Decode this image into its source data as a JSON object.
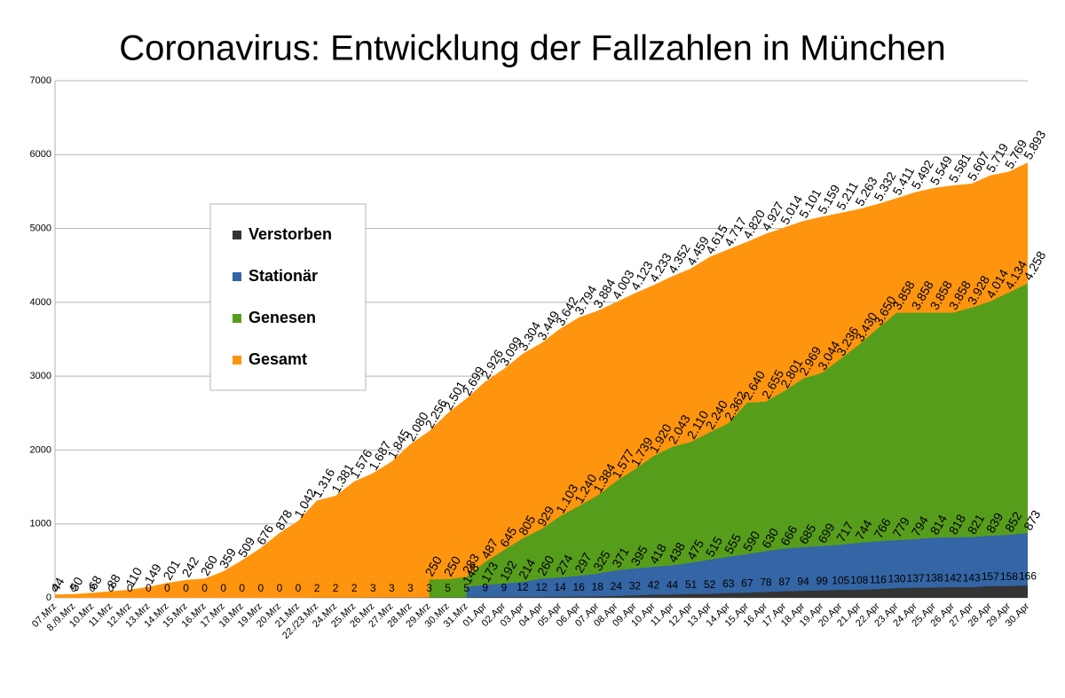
{
  "chart_data": {
    "type": "area",
    "title": "Coronavirus: Entwicklung der Fallzahlen in München",
    "categories": [
      "07.Mrz",
      "8./9.Mrz",
      "10.Mrz",
      "11.Mrz",
      "12.Mrz",
      "13.Mrz",
      "14.Mrz",
      "15.Mrz",
      "16.Mrz",
      "17.Mrz",
      "18.Mrz",
      "19.Mrz",
      "20.Mrz",
      "21.Mrz",
      "22./23.Mrz",
      "24.Mrz",
      "25.Mrz",
      "26.Mrz",
      "27.Mrz",
      "28.Mrz",
      "29.Mrz",
      "30.Mrz",
      "31.Mrz",
      "01.Apr",
      "02.Apr",
      "03.Apr",
      "04.Apr",
      "05.Apr",
      "06.Apr",
      "07.Apr",
      "08.Apr",
      "09.Apr",
      "10.Apr",
      "11.Apr",
      "12.Apr",
      "13.Apr",
      "14.Apr",
      "15.Apr",
      "16.Apr",
      "17.Apr",
      "18.Apr",
      "19.Apr",
      "20.Apr",
      "21.Apr",
      "22.Apr",
      "23.Apr",
      "24.Apr",
      "25.Apr",
      "26.Apr",
      "27.Apr",
      "28.Apr",
      "29.Apr",
      "30.Apr"
    ],
    "series": [
      {
        "name": "Verstorben",
        "color": "#333333",
        "values": [
          0,
          0,
          0,
          0,
          0,
          0,
          0,
          0,
          0,
          0,
          0,
          0,
          0,
          0,
          2,
          2,
          2,
          3,
          3,
          3,
          3,
          5,
          5,
          9,
          9,
          12,
          12,
          14,
          16,
          18,
          24,
          32,
          42,
          44,
          51,
          52,
          63,
          67,
          78,
          87,
          94,
          99,
          105,
          108,
          116,
          130,
          137,
          138,
          142,
          143,
          157,
          158,
          166
        ]
      },
      {
        "name": "Stationär",
        "color": "#3465a4",
        "values": [
          null,
          null,
          null,
          null,
          null,
          null,
          null,
          null,
          null,
          null,
          null,
          null,
          null,
          null,
          null,
          null,
          null,
          null,
          null,
          null,
          null,
          null,
          148,
          173,
          192,
          214,
          260,
          274,
          297,
          325,
          371,
          395,
          418,
          438,
          475,
          515,
          555,
          590,
          630,
          666,
          685,
          699,
          717,
          744,
          766,
          779,
          794,
          814,
          818,
          821,
          839,
          852,
          873
        ]
      },
      {
        "name": "Genesen",
        "color": "#579d1c",
        "values": [
          null,
          null,
          null,
          null,
          null,
          null,
          null,
          null,
          null,
          null,
          null,
          null,
          null,
          null,
          null,
          null,
          null,
          null,
          null,
          null,
          250,
          250,
          283,
          487,
          645,
          805,
          929,
          1103,
          1240,
          1384,
          1577,
          1739,
          1920,
          2043,
          2110,
          2240,
          2362,
          2640,
          2655,
          2801,
          2969,
          3044,
          3236,
          3430,
          3650,
          3858,
          3858,
          3858,
          3858,
          3928,
          4014,
          4134,
          4258
        ],
        "value_labels": [
          null,
          null,
          null,
          null,
          null,
          null,
          null,
          null,
          null,
          null,
          null,
          null,
          null,
          null,
          null,
          null,
          null,
          null,
          null,
          null,
          "250",
          "250",
          "283",
          "487",
          "645",
          "805",
          "929",
          "1.103",
          "1.240",
          "1.384",
          "1.577",
          "1.739",
          "1.920",
          "2.043",
          "2.110",
          "2.240",
          "2.362",
          "2.640",
          "2.655",
          "2.801",
          "2.969",
          "3.044",
          "3.236",
          "3.430",
          "3.650",
          "3.858",
          "3.858",
          "3.858",
          "3.858",
          "3.928",
          "4.014",
          "4.134",
          "4.258"
        ]
      },
      {
        "name": "Gesamt",
        "color": "#ff950e",
        "values": [
          44,
          50,
          68,
          88,
          110,
          149,
          201,
          242,
          260,
          359,
          509,
          676,
          878,
          1042,
          1316,
          1381,
          1576,
          1687,
          1845,
          2080,
          2256,
          2501,
          2699,
          2926,
          3099,
          3304,
          3449,
          3642,
          3794,
          3884,
          4003,
          4123,
          4233,
          4352,
          4459,
          4615,
          4717,
          4820,
          4927,
          5014,
          5101,
          5159,
          5211,
          5263,
          5332,
          5411,
          5492,
          5549,
          5581,
          5607,
          5719,
          5769,
          5893
        ],
        "value_labels": [
          "44",
          "50",
          "68",
          "88",
          "110",
          "149",
          "201",
          "242",
          "260",
          "359",
          "509",
          "676",
          "878",
          "1.042",
          "1.316",
          "1.381",
          "1.576",
          "1.687",
          "1.845",
          "2.080",
          "2.256",
          "2.501",
          "2.699",
          "2.926",
          "3.099",
          "3.304",
          "3.449",
          "3.642",
          "3.794",
          "3.884",
          "4.003",
          "4.123",
          "4.233",
          "4.352",
          "4.459",
          "4.615",
          "4.717",
          "4.820",
          "4.927",
          "5.014",
          "5.101",
          "5.159",
          "5.211",
          "5.263",
          "5.332",
          "5.411",
          "5.492",
          "5.549",
          "5.581",
          "5.607",
          "5.719",
          "5.769",
          "5.893"
        ]
      }
    ],
    "ylim": [
      0,
      7000
    ],
    "yticks": [
      0,
      1000,
      2000,
      3000,
      4000,
      5000,
      6000,
      7000
    ],
    "grid": true
  }
}
